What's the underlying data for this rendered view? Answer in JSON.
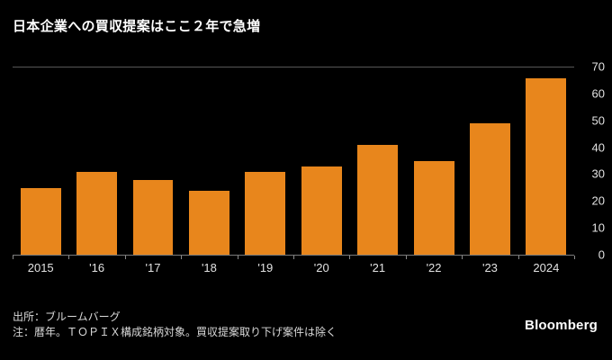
{
  "title": "日本企業への買収提案はここ２年で急増",
  "source_line": "出所：ブルームバーグ",
  "note_line": "注：暦年。ＴＯＰＩＸ構成銘柄対象。買収提案取り下げ案件は除く",
  "logo_text": "Bloomberg",
  "colors": {
    "background": "#000000",
    "bar": "#e8861c",
    "title_text": "#ffffff",
    "axis_text": "#e2e2e2",
    "footnote_text": "#d9d9d9",
    "top_border": "#565656",
    "baseline": "#7a7a7a"
  },
  "chart_data": {
    "type": "bar",
    "title": "日本企業への買収提案はここ２年で急増",
    "categories": [
      "2015",
      "'16",
      "'17",
      "'18",
      "'19",
      "'20",
      "'21",
      "'22",
      "'23",
      "2024"
    ],
    "values": [
      25,
      31,
      28,
      24,
      31,
      33,
      41,
      35,
      49,
      66
    ],
    "xlabel": "",
    "ylabel": "",
    "ylim": [
      0,
      70
    ],
    "yticks": [
      0,
      10,
      20,
      30,
      40,
      50,
      60,
      70
    ],
    "y_axis_side": "right",
    "grid": false,
    "legend": "none",
    "bar_color": "#e8861c",
    "background_color": "#000000"
  }
}
